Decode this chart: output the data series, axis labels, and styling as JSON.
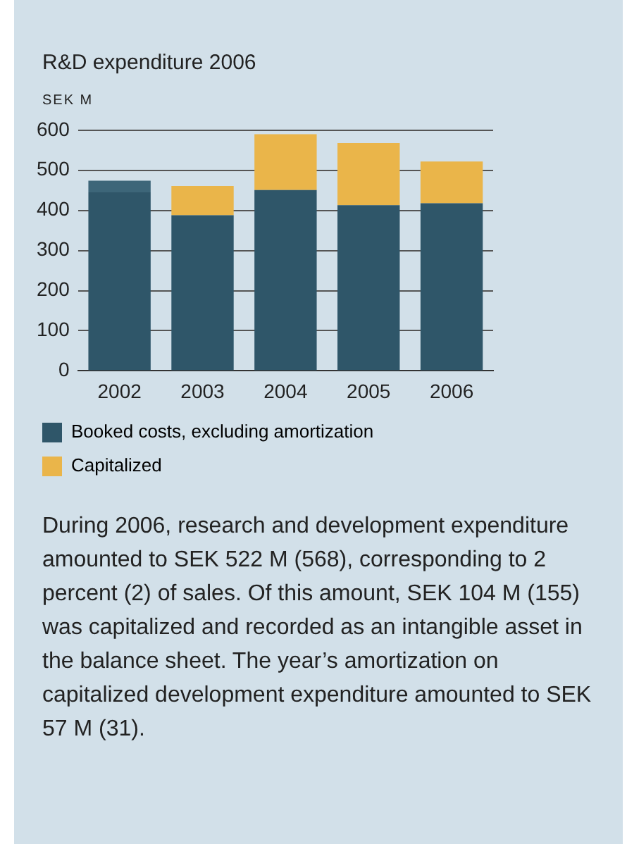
{
  "chart_data": {
    "type": "bar",
    "title": "R&D expenditure 2006",
    "ylabel": "SEK M",
    "categories": [
      "2002",
      "2003",
      "2004",
      "2005",
      "2006"
    ],
    "stacked": true,
    "series": [
      {
        "name": "Booked costs, excluding amortization",
        "color": "#2f5669",
        "values": [
          445,
          388,
          451,
          413,
          418
        ]
      },
      {
        "name": "Capitalized",
        "color": "#eab54a",
        "colors": [
          "#3d6679",
          "#eab54a",
          "#eab54a",
          "#eab54a",
          "#eab54a"
        ],
        "values": [
          29,
          73,
          139,
          155,
          104
        ]
      }
    ],
    "ylim": [
      0,
      600
    ],
    "yticks": [
      0,
      100,
      200,
      300,
      400,
      500,
      600
    ],
    "grid": "y",
    "legend": "bottom",
    "annotations": [
      "During 2006, research and development expenditure amounted to SEK 522 M (568), corresponding to 2 percent (2) of sales. Of this amount, SEK 104 M (155) was capitalized and recorded as an intangible asset in the balance sheet. The year’s amortization on capitalized development expenditure amounted to SEK 57 M (31)."
    ]
  }
}
